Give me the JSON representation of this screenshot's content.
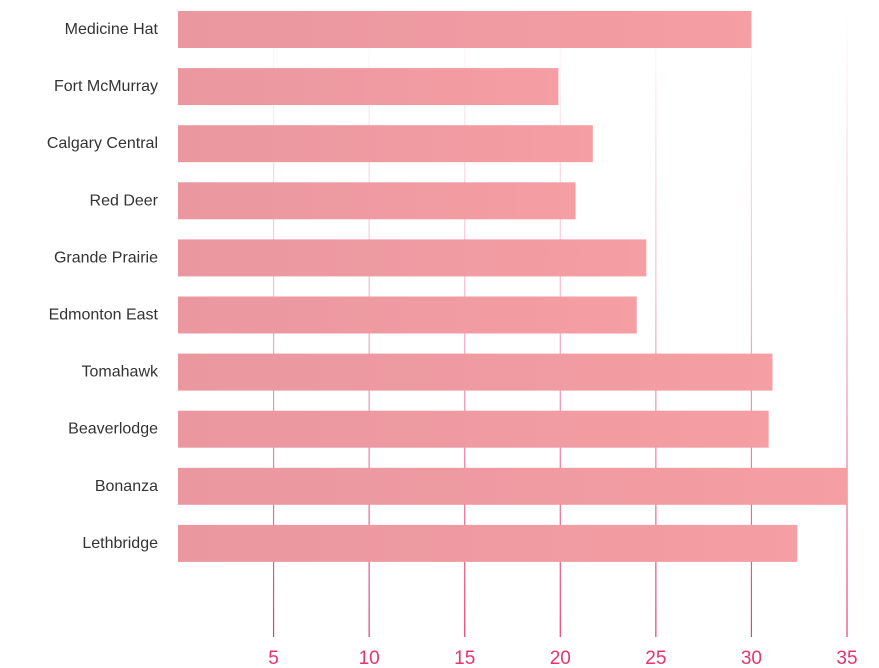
{
  "chart_data": {
    "type": "bar",
    "orientation": "horizontal",
    "title": "",
    "xlabel": "",
    "ylabel": "",
    "categories": [
      "Medicine Hat",
      "Fort McMurray",
      "Calgary Central",
      "Red Deer",
      "Grande Prairie",
      "Edmonton East",
      "Tomahawk",
      "Beaverlodge",
      "Bonanza",
      "Lethbridge"
    ],
    "values": [
      30.0,
      19.9,
      21.7,
      20.8,
      24.5,
      24.0,
      31.1,
      30.9,
      35.0,
      32.4
    ],
    "xlim": [
      0,
      35
    ],
    "xticks": [
      5,
      10,
      15,
      20,
      25,
      30,
      35
    ],
    "xtick_labels": [
      "5",
      "10",
      "15",
      "20",
      "25",
      "30",
      "35"
    ],
    "grid": "vertical lines at ticks",
    "legend": "none",
    "colors": {
      "bar_start": "#ea97a0",
      "bar_end": "#f59ea3",
      "tick_label": "#e8336d",
      "grid": "#e63d6e"
    }
  }
}
